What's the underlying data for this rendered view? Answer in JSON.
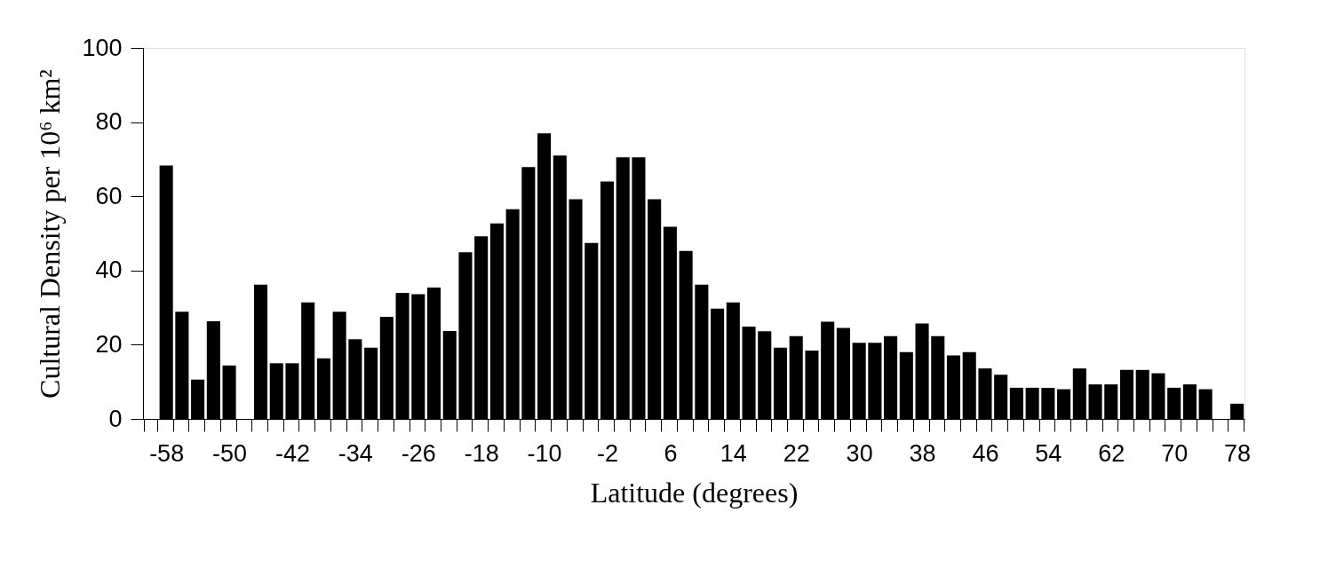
{
  "chart_data": {
    "type": "bar",
    "xlabel": "Latitude (degrees)",
    "ylabel": "Cultural Density per 10⁶ km²",
    "categories": [
      null,
      "-58",
      null,
      null,
      null,
      "-50",
      null,
      null,
      null,
      "-42",
      null,
      null,
      null,
      "-34",
      null,
      null,
      null,
      "-26",
      null,
      null,
      null,
      "-18",
      null,
      null,
      null,
      "-10",
      null,
      null,
      null,
      "-2",
      null,
      null,
      null,
      "6",
      null,
      null,
      null,
      "14",
      null,
      null,
      null,
      "22",
      null,
      null,
      null,
      "30",
      null,
      null,
      null,
      "38",
      null,
      null,
      null,
      "46",
      null,
      null,
      null,
      "54",
      null,
      null,
      null,
      "62",
      null,
      null,
      null,
      "70",
      null,
      null,
      null,
      "78"
    ],
    "values": [
      null,
      68.3,
      28.9,
      10.6,
      26.3,
      14.4,
      null,
      36.2,
      15.0,
      15.0,
      31.4,
      16.3,
      28.9,
      21.5,
      19.2,
      27.5,
      34.0,
      33.6,
      35.4,
      23.7,
      44.9,
      49.2,
      52.7,
      56.5,
      67.9,
      77.0,
      71.0,
      59.2,
      47.4,
      64.0,
      70.5,
      70.5,
      59.2,
      51.8,
      45.3,
      36.2,
      29.7,
      31.4,
      24.9,
      23.6,
      19.2,
      22.3,
      18.4,
      26.2,
      24.5,
      20.5,
      20.5,
      22.3,
      18.0,
      25.7,
      22.3,
      17.1,
      18.0,
      13.6,
      11.9,
      8.4,
      8.4,
      8.4,
      8.0,
      13.6,
      9.3,
      9.3,
      13.2,
      13.2,
      12.3,
      8.4,
      9.3,
      8.0,
      null,
      4.1
    ],
    "color": "#000000",
    "ylim": [
      0,
      100
    ],
    "yticks": [
      0,
      20,
      40,
      60,
      80,
      100
    ],
    "grid": false
  }
}
